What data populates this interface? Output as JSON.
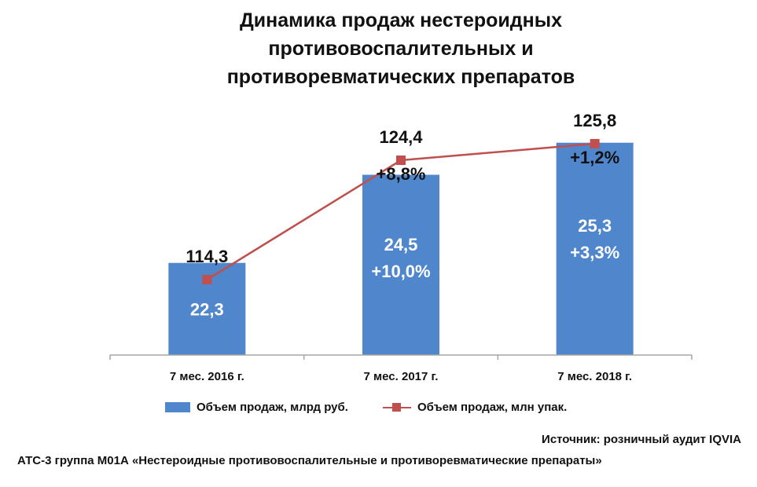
{
  "title_lines": [
    "Динамика продаж нестероидных",
    "противовоспалительных и",
    "противоревматических препаратов"
  ],
  "colors": {
    "bar": "#4f86cc",
    "line": "#c0504d",
    "axis": "#a6a6a6"
  },
  "chart_data": {
    "type": "bar",
    "title": "Динамика продаж нестероидных противовоспалительных и противоревматических препаратов",
    "categories": [
      "7 мес. 2016 г.",
      "7 мес. 2017 г.",
      "7 мес. 2018 г."
    ],
    "series": [
      {
        "name": "Объем продаж, млрд руб.",
        "type": "bar",
        "values": [
          22.3,
          24.5,
          25.3
        ],
        "value_labels": [
          "22,3",
          "24,5",
          "25,3"
        ],
        "growth_labels": [
          "",
          "+10,0%",
          "+3,3%"
        ]
      },
      {
        "name": "Объем продаж, млн упак.",
        "type": "line",
        "values": [
          114.3,
          124.4,
          125.8
        ],
        "value_labels": [
          "114,3",
          "124,4",
          "125,8"
        ],
        "growth_labels": [
          "",
          "+8,8%",
          "+1,2%"
        ]
      }
    ],
    "legend_position": "bottom",
    "grid": false
  },
  "source": "Источник: розничный аудит IQVIA",
  "atc_note": "АТС-3 группа М01А «Нестероидные противовоспалительные и противоревматические препараты»"
}
